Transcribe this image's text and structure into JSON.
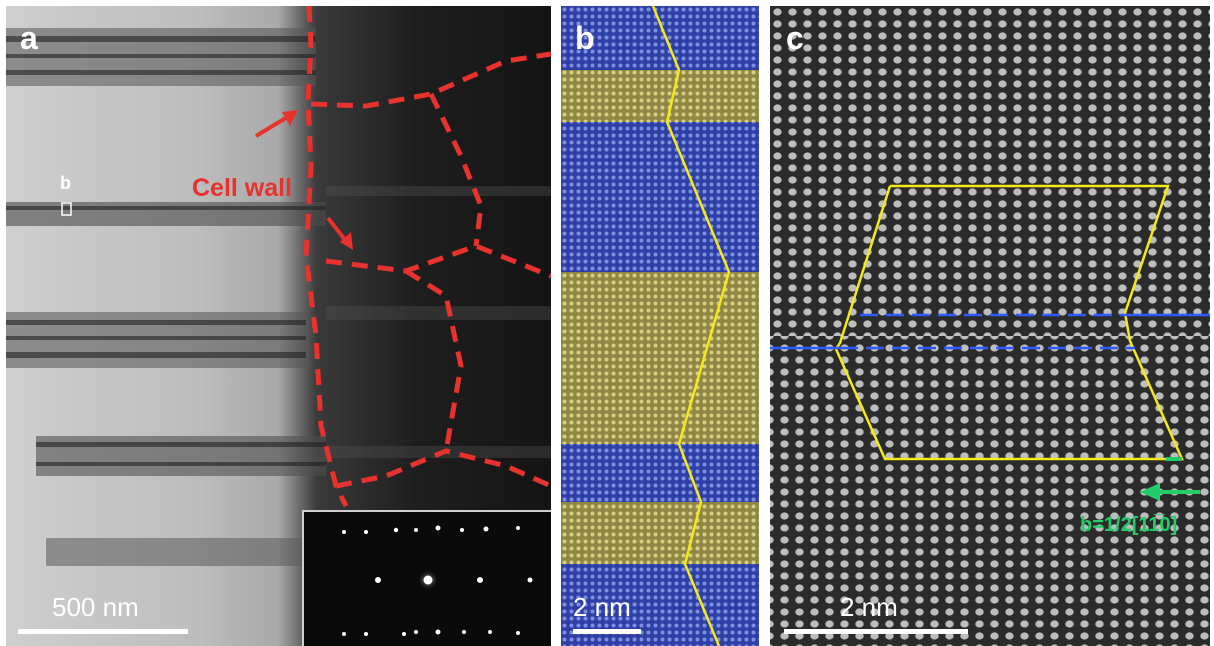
{
  "panels": {
    "a": {
      "label": "a",
      "annotation": "Cell wall",
      "box_label": "b",
      "scale": "500 nm",
      "colors": {
        "wall": "#e8322d",
        "annotation": "#e8322d"
      }
    },
    "b": {
      "label": "b",
      "scale": "2 nm",
      "colors": {
        "blue_band": "#3345b0",
        "yellow_band": "#b5aa58",
        "line": "#f4ea1a"
      }
    },
    "c": {
      "label": "c",
      "scale": "2 nm",
      "burgers": "b=1/2[11̅0]",
      "colors": {
        "circuit": "#f4ea1a",
        "plane": "#2c5cff",
        "vector": "#22cc66"
      }
    }
  }
}
